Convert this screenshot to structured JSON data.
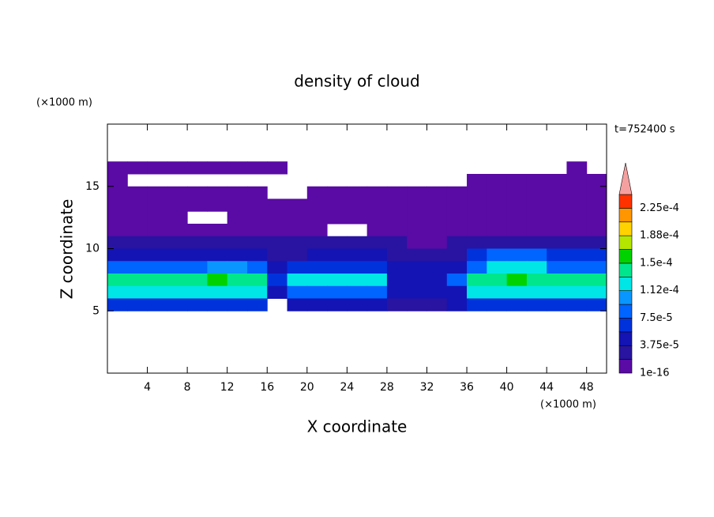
{
  "chart_data": {
    "type": "contour",
    "title": "density of cloud",
    "x_label": "X coordinate",
    "y_label": "Z coordinate",
    "x_unit": "(×1000 m)",
    "y_unit": "(×1000 m)",
    "time_label": "t=752400 s",
    "xlim": [
      0,
      50
    ],
    "ylim": [
      0,
      20
    ],
    "xticks": [
      4,
      8,
      12,
      16,
      20,
      24,
      28,
      32,
      36,
      40,
      44,
      48
    ],
    "yticks": [
      5,
      10,
      15
    ],
    "x": [
      1,
      3,
      5,
      7,
      9,
      11,
      13,
      15,
      17,
      19,
      21,
      23,
      25,
      27,
      29,
      31,
      33,
      35,
      37,
      39,
      41,
      43,
      45,
      47,
      49
    ],
    "z": [
      16.5,
      15.5,
      14.5,
      13.5,
      12.5,
      11.5,
      10.5,
      9.5,
      8.5,
      7.5,
      6.5,
      5.5
    ],
    "values": [
      [
        1e-05,
        1e-05,
        1e-05,
        1e-05,
        1e-05,
        1e-05,
        1e-05,
        1e-05,
        1e-05,
        null,
        null,
        null,
        null,
        null,
        null,
        null,
        null,
        null,
        null,
        null,
        null,
        null,
        null,
        1e-05,
        null
      ],
      [
        1e-05,
        null,
        null,
        null,
        null,
        null,
        null,
        null,
        null,
        null,
        null,
        null,
        null,
        null,
        null,
        null,
        null,
        null,
        1e-05,
        1e-05,
        1e-05,
        1e-05,
        1e-05,
        1e-05,
        1e-05
      ],
      [
        1e-05,
        1e-05,
        1e-05,
        1e-05,
        1e-05,
        1e-05,
        1e-05,
        1e-05,
        null,
        null,
        1e-05,
        1e-05,
        1e-05,
        1e-05,
        1e-05,
        1e-05,
        1e-05,
        1e-05,
        1e-05,
        1e-05,
        1e-05,
        1e-05,
        1e-05,
        1e-05,
        1e-05
      ],
      [
        1e-05,
        1e-05,
        1e-05,
        1e-05,
        1e-05,
        1e-05,
        1e-05,
        1e-05,
        1e-05,
        1e-05,
        1e-05,
        1e-05,
        1e-05,
        1e-05,
        1e-05,
        1e-05,
        1e-05,
        1e-05,
        1e-05,
        1e-05,
        1e-05,
        1e-05,
        1e-05,
        1e-05,
        1e-05
      ],
      [
        1e-05,
        1e-05,
        1e-05,
        1e-05,
        null,
        null,
        1e-05,
        1e-05,
        1e-05,
        1e-05,
        1e-05,
        1e-05,
        1e-05,
        1e-05,
        1e-05,
        1e-05,
        1e-05,
        1e-05,
        1e-05,
        1e-05,
        1e-05,
        1e-05,
        1e-05,
        1e-05,
        1e-05
      ],
      [
        1e-05,
        1e-05,
        1e-05,
        1e-05,
        1e-05,
        1e-05,
        1e-05,
        1e-05,
        1e-05,
        1e-05,
        1e-05,
        null,
        null,
        1e-05,
        1e-05,
        1e-05,
        1e-05,
        1e-05,
        1e-05,
        1e-05,
        1e-05,
        1e-05,
        1e-05,
        1e-05,
        1e-05
      ],
      [
        2.5e-05,
        2.5e-05,
        2.5e-05,
        2.5e-05,
        2.5e-05,
        2.5e-05,
        2.5e-05,
        2.5e-05,
        2.5e-05,
        2.5e-05,
        2.5e-05,
        2.5e-05,
        2.5e-05,
        2.5e-05,
        2.5e-05,
        1e-05,
        1e-05,
        2.5e-05,
        2.5e-05,
        2.5e-05,
        2.5e-05,
        2.5e-05,
        2.5e-05,
        2.5e-05,
        2.5e-05
      ],
      [
        4e-05,
        4e-05,
        4e-05,
        4e-05,
        4e-05,
        4e-05,
        4e-05,
        4e-05,
        2.5e-05,
        2.5e-05,
        4e-05,
        4e-05,
        4e-05,
        4e-05,
        2.5e-05,
        2.5e-05,
        2.5e-05,
        2.5e-05,
        6e-05,
        8e-05,
        8e-05,
        8e-05,
        6e-05,
        6e-05,
        6e-05
      ],
      [
        8e-05,
        8e-05,
        8e-05,
        8e-05,
        8e-05,
        0.0001,
        0.0001,
        8e-05,
        4e-05,
        6e-05,
        6e-05,
        6e-05,
        6e-05,
        6e-05,
        4e-05,
        4e-05,
        4e-05,
        4e-05,
        8e-05,
        0.00012,
        0.00012,
        0.00012,
        8e-05,
        8e-05,
        8e-05
      ],
      [
        0.00014,
        0.00014,
        0.00014,
        0.00014,
        0.00014,
        0.00016,
        0.00014,
        0.00014,
        6e-05,
        0.00012,
        0.00012,
        0.00012,
        0.00012,
        0.00012,
        4e-05,
        4e-05,
        4e-05,
        8e-05,
        0.00014,
        0.00014,
        0.00016,
        0.00014,
        0.00014,
        0.00014,
        0.00014
      ],
      [
        0.00012,
        0.00012,
        0.00012,
        0.00012,
        0.00012,
        0.00012,
        0.00012,
        0.00012,
        4e-05,
        8e-05,
        8e-05,
        8e-05,
        8e-05,
        8e-05,
        4e-05,
        4e-05,
        4e-05,
        4e-05,
        0.00012,
        0.00012,
        0.00012,
        0.00012,
        0.00012,
        0.00012,
        0.00012
      ],
      [
        6e-05,
        6e-05,
        6e-05,
        6e-05,
        6e-05,
        6e-05,
        6e-05,
        6e-05,
        null,
        4e-05,
        4e-05,
        4e-05,
        4e-05,
        4e-05,
        2.5e-05,
        2.5e-05,
        2.5e-05,
        4e-05,
        6e-05,
        6e-05,
        6e-05,
        6e-05,
        6e-05,
        6e-05,
        6e-05
      ]
    ],
    "levels": [
      {
        "value": 1e-16,
        "label": "1e-16"
      },
      1.875e-05,
      {
        "value": 3.75e-05,
        "label": "3.75e-5"
      },
      5.625e-05,
      {
        "value": 7.5e-05,
        "label": "7.5e-5"
      },
      9.375e-05,
      {
        "value": 0.0001125,
        "label": "1.12e-4"
      },
      0.00013125,
      {
        "value": 0.00015,
        "label": "1.5e-4"
      },
      0.00016875,
      {
        "value": 0.0001875,
        "label": "1.88e-4"
      },
      0.00020625,
      {
        "value": 0.000225,
        "label": "2.25e-4"
      },
      0.00024375
    ],
    "colors": [
      "#5a0aa5",
      "#2814a0",
      "#1414b4",
      "#0032dc",
      "#0064ff",
      "#0a96ff",
      "#00e6e6",
      "#00e68c",
      "#00d200",
      "#b4e600",
      "#ffd200",
      "#ff9600",
      "#ff3200"
    ],
    "extend_color": "#f5a0a0"
  }
}
